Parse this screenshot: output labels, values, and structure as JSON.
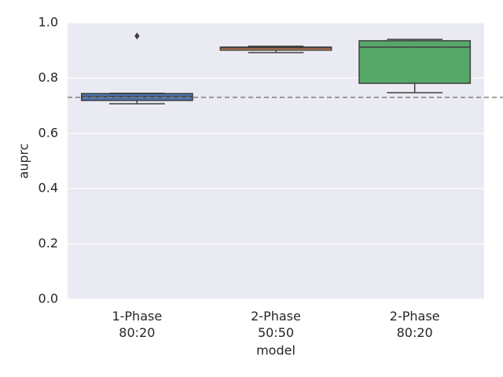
{
  "chart_data": {
    "type": "box",
    "categories": [
      "1-Phase\n80:20",
      "2-Phase\n50:50",
      "2-Phase\n80:20"
    ],
    "boxes": [
      {
        "whislo": 0.707,
        "q1": 0.719,
        "med": 0.733,
        "q3": 0.744,
        "whishi": 0.745,
        "fliers": [
          0.952
        ]
      },
      {
        "whislo": 0.892,
        "q1": 0.901,
        "med": 0.909,
        "q3": 0.912,
        "whishi": 0.915,
        "fliers": []
      },
      {
        "whislo": 0.747,
        "q1": 0.781,
        "med": 0.912,
        "q3": 0.935,
        "whishi": 0.94,
        "fliers": []
      }
    ],
    "colors": [
      "#4c72b0",
      "#dd8452",
      "#55a868"
    ],
    "reference_line": 0.73,
    "xlabel": "model",
    "ylabel": "auprc",
    "ylim": [
      0,
      1
    ],
    "yticks": [
      {
        "value": 0,
        "label": "0.0"
      },
      0.2,
      0.4,
      0.6,
      0.8,
      {
        "value": 1,
        "label": "1.0"
      }
    ],
    "grid": true
  }
}
